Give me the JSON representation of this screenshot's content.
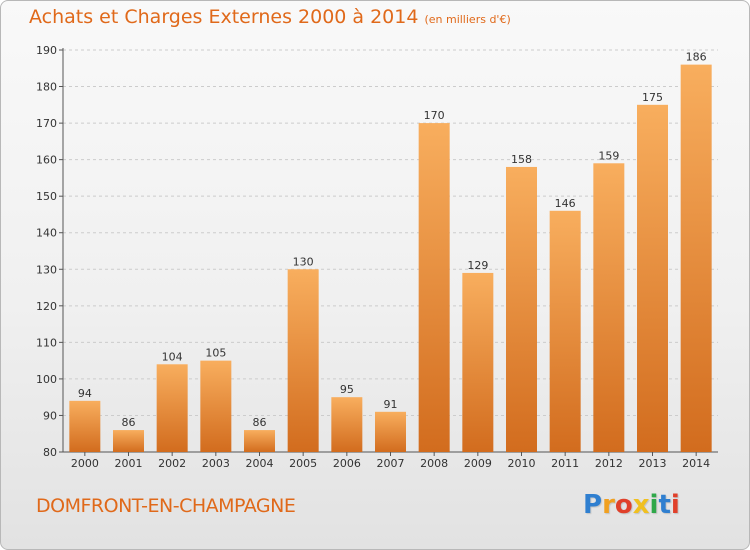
{
  "title": {
    "main": "Achats et Charges Externes 2000 à 2014",
    "unit": "(en milliers d'€)"
  },
  "commune": "DOMFRONT-EN-CHAMPAGNE",
  "logo": {
    "letters": [
      {
        "char": "P",
        "color": "#2f7fd0"
      },
      {
        "char": "r",
        "color": "#f0a020"
      },
      {
        "char": "o",
        "color": "#e0402a"
      },
      {
        "char": "x",
        "color": "#f0c020"
      },
      {
        "char": "i",
        "color": "#2fa84a"
      },
      {
        "char": "t",
        "color": "#2f7fd0"
      },
      {
        "char": "i",
        "color": "#e0402a"
      }
    ]
  },
  "colors": {
    "bar_light": "#f8ae5e",
    "bar_dark": "#d26c1e",
    "title": "#e0691a",
    "grid": "#cccccc"
  },
  "chart_data": {
    "type": "bar",
    "title": "Achats et Charges Externes 2000 à 2014",
    "subtitle": "(en milliers d'€)",
    "xlabel": "",
    "ylabel": "",
    "categories": [
      "2000",
      "2001",
      "2002",
      "2003",
      "2004",
      "2005",
      "2006",
      "2007",
      "2008",
      "2009",
      "2010",
      "2011",
      "2012",
      "2013",
      "2014"
    ],
    "values": [
      94,
      86,
      104,
      105,
      86,
      130,
      95,
      91,
      170,
      129,
      158,
      146,
      159,
      175,
      186
    ],
    "ylim": [
      80,
      190
    ],
    "yticks": [
      80,
      90,
      100,
      110,
      120,
      130,
      140,
      150,
      160,
      170,
      180,
      190
    ],
    "grid": true,
    "legend": "none"
  }
}
